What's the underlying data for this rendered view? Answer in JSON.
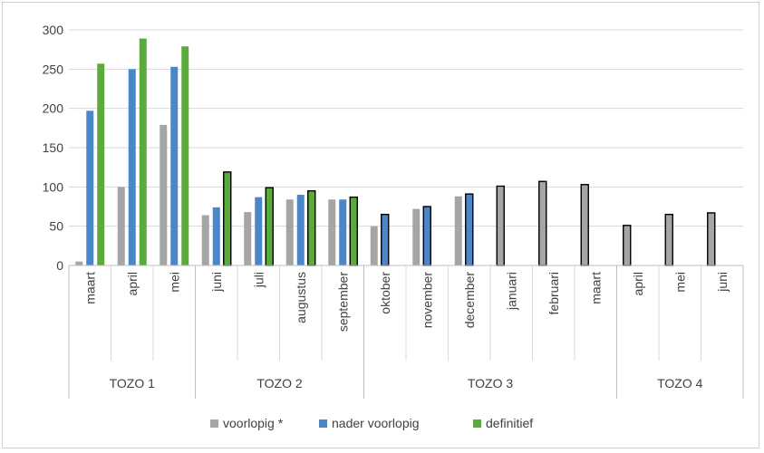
{
  "chart_data": {
    "type": "bar",
    "ylim": [
      0,
      300
    ],
    "yticks": [
      "0",
      "50",
      "100",
      "150",
      "200",
      "250",
      "300"
    ],
    "grid": true,
    "legend_position": "bottom",
    "groups": [
      {
        "label": "TOZO 1",
        "categories": [
          "maart",
          "april",
          "mei"
        ]
      },
      {
        "label": "TOZO 2",
        "categories": [
          "juni",
          "juli",
          "augustus",
          "september"
        ]
      },
      {
        "label": "TOZO 3",
        "categories": [
          "oktober",
          "november",
          "december",
          "januari",
          "februari",
          "maart"
        ]
      },
      {
        "label": "TOZO 4",
        "categories": [
          "april",
          "mei",
          "juni"
        ]
      }
    ],
    "categories": [
      "maart",
      "april",
      "mei",
      "juni",
      "juli",
      "augustus",
      "september",
      "oktober",
      "november",
      "december",
      "januari",
      "februari",
      "maart",
      "april",
      "mei",
      "juni"
    ],
    "series": [
      {
        "name": "voorlopig *",
        "color": "#a5a5a5",
        "values": [
          5,
          100,
          179,
          64,
          68,
          84,
          84,
          50,
          72,
          88,
          101,
          107,
          103,
          51,
          65,
          67
        ]
      },
      {
        "name": "nader voorlopig",
        "color": "#4a86c8",
        "values": [
          197,
          250,
          253,
          74,
          87,
          90,
          84,
          65,
          75,
          91,
          null,
          null,
          null,
          null,
          null,
          null
        ]
      },
      {
        "name": "definitief",
        "color": "#5aaa3c",
        "values": [
          257,
          289,
          279,
          119,
          99,
          95,
          87,
          null,
          null,
          null,
          null,
          null,
          null,
          null,
          null,
          null
        ]
      }
    ]
  }
}
